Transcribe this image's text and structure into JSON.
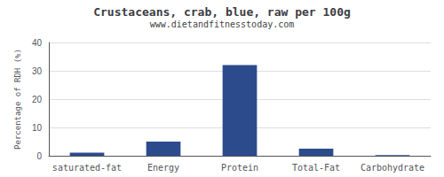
{
  "chart_data": {
    "type": "bar",
    "title": "Crustaceans, crab, blue, raw per 100g",
    "subtitle": "www.dietandfitnesstoday.com",
    "categories": [
      "saturated-fat",
      "Energy",
      "Protein",
      "Total-Fat",
      "Carbohydrate"
    ],
    "values": [
      1.1,
      5.0,
      32.0,
      2.5,
      0.2
    ],
    "color": "#2b4b8c",
    "ylabel": "Percentage of RDH (%)",
    "ylim": [
      0,
      40
    ],
    "yticks": [
      0,
      10,
      20,
      30,
      40
    ],
    "grid": true
  }
}
